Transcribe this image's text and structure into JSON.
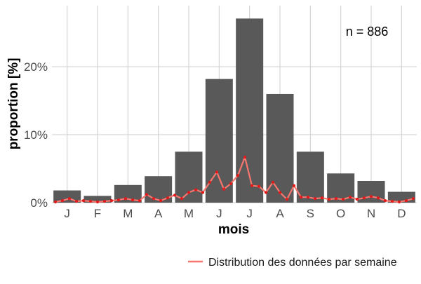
{
  "chart_data": {
    "type": "bar",
    "xlabel": "mois",
    "ylabel": "proportion [%]",
    "annotation": "n = 886",
    "categories": [
      "J",
      "F",
      "M",
      "A",
      "M",
      "J",
      "J",
      "A",
      "S",
      "O",
      "N",
      "D"
    ],
    "yticks": [
      {
        "value": 0,
        "label": "0%"
      },
      {
        "value": 10,
        "label": "10%"
      },
      {
        "value": 20,
        "label": "20%"
      }
    ],
    "ylim": [
      0,
      29
    ],
    "grid": true,
    "legend_position": "bottom-right",
    "bar_color": "#595959",
    "line_color": "#f8766d",
    "point_color": "#e31a1c",
    "series": [
      {
        "name": "",
        "kind": "bar",
        "values": [
          1.8,
          1.0,
          2.6,
          3.9,
          7.5,
          18.2,
          27.1,
          16.0,
          7.5,
          4.3,
          3.2,
          1.6
        ]
      },
      {
        "name": "Distribution des données par semaine",
        "kind": "line",
        "x": [
          0.5,
          1.5,
          2.5,
          3.5,
          4.5,
          5.5,
          6.5,
          7.5,
          8.5,
          9.5,
          10.5,
          11.5,
          12.5,
          13.5,
          14.5,
          15.5,
          16.5,
          17.5,
          18.5,
          19.5,
          20.5,
          21.5,
          22.5,
          23.5,
          24.5,
          25.5,
          26.5,
          27.5,
          28.5,
          29.5,
          30.5,
          31.5,
          32.5,
          33.5,
          34.5,
          35.5,
          36.5,
          37.5,
          38.5,
          39.5,
          40.5,
          41.5,
          42.5,
          43.5,
          44.5,
          45.5,
          46.5,
          47.5,
          48.5,
          49.5,
          50.5,
          51.5
        ],
        "values": [
          0.1,
          0.3,
          0.6,
          0.2,
          0.3,
          0.2,
          0.1,
          0.2,
          0.3,
          0.4,
          0.6,
          0.4,
          0.3,
          1.2,
          0.6,
          0.3,
          0.7,
          1.1,
          0.6,
          1.5,
          1.9,
          1.5,
          3.0,
          4.5,
          2.0,
          2.8,
          4.0,
          6.7,
          2.5,
          2.4,
          1.5,
          3.0,
          1.5,
          0.5,
          2.5,
          0.8,
          0.8,
          0.6,
          0.7,
          0.5,
          0.6,
          0.5,
          0.8,
          0.5,
          0.7,
          0.9,
          0.7,
          0.3,
          0.2,
          0.1,
          0.3,
          0.6
        ]
      }
    ]
  }
}
